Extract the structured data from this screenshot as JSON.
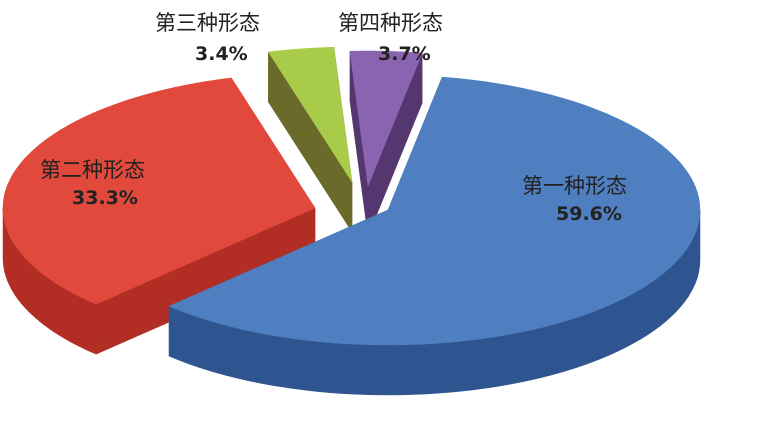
{
  "chart_data": {
    "type": "pie",
    "style": "3d-exploded",
    "categories": [
      "第一种形态",
      "第二种形态",
      "第三种形态",
      "第四种形态"
    ],
    "values": [
      59.6,
      33.3,
      3.4,
      3.7
    ],
    "value_labels": [
      "59.6%",
      "33.3%",
      "3.4%",
      "3.7%"
    ],
    "colors": [
      "#4f7fc0",
      "#e0493c",
      "#a9cb4a",
      "#8a64b0"
    ],
    "side_colors": [
      "#2f5590",
      "#b22e24",
      "#6a6a2a",
      "#55376f"
    ],
    "legend": "none"
  }
}
